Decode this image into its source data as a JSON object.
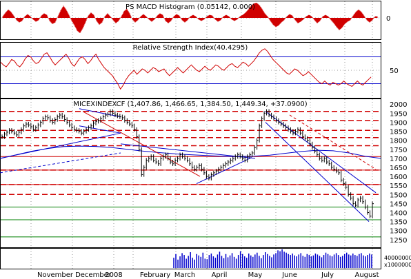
{
  "chart_data": [
    {
      "type": "bar",
      "title": "PS MACD Histogram (0.05142, 0.000)",
      "y_ticks": [
        0
      ],
      "ylim": [
        -1,
        1
      ],
      "positive_color": "#d00000",
      "negative_color": "#d00000",
      "series": [
        {
          "x": 0,
          "v": 0.1
        },
        {
          "x": 4,
          "v": 0.35
        },
        {
          "x": 8,
          "v": 0.55
        },
        {
          "x": 12,
          "v": 0.4
        },
        {
          "x": 16,
          "v": 0.15
        },
        {
          "x": 20,
          "v": -0.15
        },
        {
          "x": 24,
          "v": -0.3
        },
        {
          "x": 28,
          "v": -0.2
        },
        {
          "x": 32,
          "v": 0.1
        },
        {
          "x": 36,
          "v": 0.25
        },
        {
          "x": 40,
          "v": 0.1
        },
        {
          "x": 44,
          "v": -0.1
        },
        {
          "x": 48,
          "v": -0.25
        },
        {
          "x": 52,
          "v": -0.15
        },
        {
          "x": 56,
          "v": 0.15
        },
        {
          "x": 60,
          "v": 0.3
        },
        {
          "x": 64,
          "v": 0.2
        },
        {
          "x": 68,
          "v": -0.2
        },
        {
          "x": 72,
          "v": -0.4
        },
        {
          "x": 76,
          "v": -0.3
        },
        {
          "x": 80,
          "v": 0.1
        },
        {
          "x": 84,
          "v": 0.5
        },
        {
          "x": 88,
          "v": 0.8
        },
        {
          "x": 92,
          "v": 0.55
        },
        {
          "x": 96,
          "v": 0.2
        },
        {
          "x": 100,
          "v": -0.2
        },
        {
          "x": 104,
          "v": -0.5
        },
        {
          "x": 108,
          "v": -0.85
        },
        {
          "x": 112,
          "v": -1.0
        },
        {
          "x": 116,
          "v": -0.7
        },
        {
          "x": 120,
          "v": -0.3
        },
        {
          "x": 124,
          "v": 0.15
        },
        {
          "x": 128,
          "v": 0.35
        },
        {
          "x": 132,
          "v": 0.2
        },
        {
          "x": 136,
          "v": -0.2
        },
        {
          "x": 140,
          "v": -0.45
        },
        {
          "x": 144,
          "v": -0.3
        },
        {
          "x": 148,
          "v": 0.1
        },
        {
          "x": 152,
          "v": 0.3
        },
        {
          "x": 156,
          "v": 0.1
        },
        {
          "x": 160,
          "v": -0.15
        },
        {
          "x": 164,
          "v": -0.35
        },
        {
          "x": 168,
          "v": -0.2
        },
        {
          "x": 172,
          "v": 0.1
        },
        {
          "x": 176,
          "v": 0.45
        },
        {
          "x": 180,
          "v": 0.6
        },
        {
          "x": 184,
          "v": 0.3
        },
        {
          "x": 188,
          "v": -0.1
        },
        {
          "x": 192,
          "v": -0.3
        },
        {
          "x": 196,
          "v": -0.15
        },
        {
          "x": 200,
          "v": 0.1
        },
        {
          "x": 204,
          "v": 0.25
        },
        {
          "x": 208,
          "v": 0.1
        },
        {
          "x": 212,
          "v": -0.1
        },
        {
          "x": 216,
          "v": -0.25
        },
        {
          "x": 220,
          "v": -0.1
        },
        {
          "x": 224,
          "v": 0.15
        },
        {
          "x": 228,
          "v": 0.3
        },
        {
          "x": 232,
          "v": 0.2
        },
        {
          "x": 236,
          "v": -0.2
        },
        {
          "x": 240,
          "v": -0.35
        },
        {
          "x": 244,
          "v": -0.2
        },
        {
          "x": 248,
          "v": 0.1
        },
        {
          "x": 252,
          "v": 0.25
        },
        {
          "x": 256,
          "v": 0.15
        },
        {
          "x": 260,
          "v": -0.15
        },
        {
          "x": 264,
          "v": -0.3
        },
        {
          "x": 268,
          "v": -0.15
        },
        {
          "x": 272,
          "v": 0.1
        },
        {
          "x": 276,
          "v": 0.2
        },
        {
          "x": 280,
          "v": 0.1
        },
        {
          "x": 284,
          "v": -0.1
        },
        {
          "x": 288,
          "v": -0.2
        },
        {
          "x": 292,
          "v": -0.1
        },
        {
          "x": 296,
          "v": 0.1
        },
        {
          "x": 300,
          "v": 0.2
        },
        {
          "x": 304,
          "v": 0.15
        },
        {
          "x": 308,
          "v": -0.1
        },
        {
          "x": 312,
          "v": -0.25
        },
        {
          "x": 316,
          "v": -0.15
        },
        {
          "x": 320,
          "v": 0.1
        },
        {
          "x": 324,
          "v": 0.2
        },
        {
          "x": 328,
          "v": 0.1
        },
        {
          "x": 332,
          "v": -0.1
        },
        {
          "x": 336,
          "v": -0.2
        },
        {
          "x": 340,
          "v": -0.1
        },
        {
          "x": 344,
          "v": 0.1
        },
        {
          "x": 348,
          "v": 0.2
        },
        {
          "x": 352,
          "v": 0.35
        },
        {
          "x": 356,
          "v": 0.55
        },
        {
          "x": 360,
          "v": 0.8
        },
        {
          "x": 364,
          "v": 0.95
        },
        {
          "x": 368,
          "v": 1.0
        },
        {
          "x": 372,
          "v": 0.85
        },
        {
          "x": 376,
          "v": 0.6
        },
        {
          "x": 380,
          "v": 0.3
        },
        {
          "x": 384,
          "v": 0.1
        },
        {
          "x": 388,
          "v": -0.2
        },
        {
          "x": 392,
          "v": -0.45
        },
        {
          "x": 396,
          "v": -0.6
        },
        {
          "x": 400,
          "v": -0.5
        },
        {
          "x": 404,
          "v": -0.3
        },
        {
          "x": 408,
          "v": -0.15
        },
        {
          "x": 412,
          "v": 0.1
        },
        {
          "x": 416,
          "v": 0.25
        },
        {
          "x": 420,
          "v": 0.15
        },
        {
          "x": 424,
          "v": -0.15
        },
        {
          "x": 428,
          "v": -0.35
        },
        {
          "x": 432,
          "v": -0.25
        },
        {
          "x": 436,
          "v": -0.1
        },
        {
          "x": 440,
          "v": 0.1
        },
        {
          "x": 444,
          "v": 0.2
        },
        {
          "x": 448,
          "v": 0.1
        },
        {
          "x": 452,
          "v": -0.15
        },
        {
          "x": 456,
          "v": -0.35
        },
        {
          "x": 460,
          "v": -0.2
        },
        {
          "x": 464,
          "v": 0.1
        },
        {
          "x": 468,
          "v": 0.2
        },
        {
          "x": 472,
          "v": 0.1
        },
        {
          "x": 476,
          "v": -0.15
        },
        {
          "x": 480,
          "v": -0.35
        },
        {
          "x": 484,
          "v": -0.6
        },
        {
          "x": 488,
          "v": -0.8
        },
        {
          "x": 492,
          "v": -0.65
        },
        {
          "x": 496,
          "v": -0.4
        },
        {
          "x": 500,
          "v": -0.25
        },
        {
          "x": 504,
          "v": -0.15
        },
        {
          "x": 508,
          "v": 0.15
        },
        {
          "x": 512,
          "v": 0.4
        },
        {
          "x": 516,
          "v": 0.55
        },
        {
          "x": 520,
          "v": 0.4
        },
        {
          "x": 524,
          "v": 0.15
        },
        {
          "x": 528,
          "v": -0.15
        },
        {
          "x": 532,
          "v": -0.3
        },
        {
          "x": 536,
          "v": -0.15
        },
        {
          "x": 540,
          "v": 0.1
        }
      ]
    },
    {
      "type": "line",
      "title": "Relative Strength Index(40.4295)",
      "y_ticks": [
        50
      ],
      "ylim": [
        10,
        90
      ],
      "hlines": [
        30,
        70
      ],
      "line_color": "#d00000",
      "values": [
        62,
        58,
        55,
        60,
        66,
        64,
        58,
        55,
        60,
        67,
        72,
        70,
        64,
        60,
        62,
        68,
        74,
        76,
        70,
        63,
        58,
        62,
        66,
        70,
        74,
        68,
        60,
        56,
        62,
        68,
        70,
        66,
        60,
        64,
        70,
        74,
        66,
        60,
        54,
        50,
        46,
        42,
        36,
        30,
        22,
        28,
        36,
        42,
        46,
        50,
        44,
        48,
        52,
        50,
        46,
        50,
        54,
        52,
        48,
        50,
        52,
        46,
        42,
        46,
        50,
        54,
        50,
        46,
        50,
        54,
        58,
        54,
        50,
        48,
        52,
        56,
        52,
        50,
        54,
        58,
        56,
        52,
        50,
        54,
        58,
        60,
        56,
        54,
        58,
        62,
        60,
        56,
        60,
        64,
        70,
        76,
        80,
        82,
        78,
        72,
        66,
        62,
        58,
        54,
        50,
        46,
        44,
        48,
        52,
        50,
        46,
        42,
        44,
        48,
        44,
        40,
        36,
        32,
        30,
        34,
        30,
        28,
        32,
        30,
        28,
        30,
        34,
        30,
        28,
        26,
        30,
        34,
        30,
        28,
        32,
        36,
        40
      ]
    },
    {
      "type": "candlestick",
      "title": "MICEXINDEXCF (1,407.86, 1,466.65, 1,384.50, 1,449.34, +37.0900)",
      "y_ticks": [
        2000,
        1950,
        1900,
        1850,
        1800,
        1750,
        1700,
        1650,
        1600,
        1550,
        1500,
        1450,
        1400,
        1350,
        1300,
        1250
      ],
      "ylim": [
        1215,
        2020
      ],
      "x_labels": [
        "November",
        "December",
        "2008",
        "February",
        "March",
        "April",
        "May",
        "June",
        "July",
        "August"
      ],
      "red_dashed_levels": [
        1960,
        1910,
        1855,
        1815,
        1770,
        1635,
        1555,
        1500
      ],
      "green_levels": [
        1430,
        1360,
        1265
      ],
      "close": [
        1820,
        1835,
        1845,
        1855,
        1850,
        1840,
        1830,
        1845,
        1860,
        1880,
        1890,
        1885,
        1875,
        1860,
        1870,
        1885,
        1900,
        1920,
        1930,
        1925,
        1910,
        1900,
        1915,
        1930,
        1940,
        1930,
        1915,
        1900,
        1885,
        1870,
        1860,
        1855,
        1850,
        1840,
        1850,
        1860,
        1870,
        1880,
        1895,
        1905,
        1910,
        1920,
        1930,
        1940,
        1945,
        1960,
        1950,
        1940,
        1935,
        1930,
        1925,
        1910,
        1900,
        1890,
        1880,
        1860,
        1820,
        1750,
        1610,
        1650,
        1690,
        1700,
        1710,
        1690,
        1680,
        1670,
        1700,
        1710,
        1720,
        1700,
        1680,
        1670,
        1690,
        1700,
        1720,
        1710,
        1700,
        1690,
        1670,
        1650,
        1640,
        1650,
        1660,
        1640,
        1620,
        1600,
        1590,
        1610,
        1620,
        1630,
        1640,
        1650,
        1660,
        1670,
        1680,
        1690,
        1700,
        1710,
        1720,
        1710,
        1700,
        1690,
        1710,
        1720,
        1730,
        1760,
        1800,
        1880,
        1920,
        1950,
        1960,
        1940,
        1930,
        1920,
        1910,
        1900,
        1890,
        1880,
        1870,
        1860,
        1850,
        1840,
        1850,
        1860,
        1840,
        1820,
        1810,
        1800,
        1780,
        1760,
        1740,
        1720,
        1700,
        1690,
        1700,
        1680,
        1670,
        1650,
        1640,
        1630,
        1620,
        1580,
        1560,
        1540,
        1500,
        1480,
        1450,
        1440,
        1470,
        1480,
        1460,
        1430,
        1400,
        1380,
        1449
      ]
    },
    {
      "type": "bar",
      "title": "",
      "y_ticks": [
        40000000
      ],
      "ylim": [
        0,
        40000000
      ],
      "extra_label": "x1000000",
      "bar_color": "#0000cc",
      "values_start_index": 250,
      "volumes": [
        22,
        30,
        18,
        25,
        32,
        28,
        20,
        26,
        34,
        22,
        18,
        30,
        27,
        24,
        33,
        20,
        19,
        28,
        31,
        25,
        22,
        29,
        35,
        26,
        21,
        30,
        23,
        27,
        32,
        24,
        20,
        28,
        36,
        30,
        25,
        22,
        31,
        27,
        24,
        29,
        33,
        26,
        21,
        28,
        34,
        30,
        26,
        23,
        29,
        32,
        38,
        36,
        40,
        35,
        33,
        30,
        28,
        31,
        27,
        25,
        29,
        32,
        26,
        24,
        30,
        28,
        25,
        27,
        31,
        29,
        26,
        23,
        28,
        33,
        30,
        27,
        25,
        29,
        32,
        28,
        24,
        26,
        30,
        33,
        29,
        27,
        31,
        28,
        26,
        30,
        32,
        27,
        25,
        28,
        31,
        29
      ]
    }
  ]
}
